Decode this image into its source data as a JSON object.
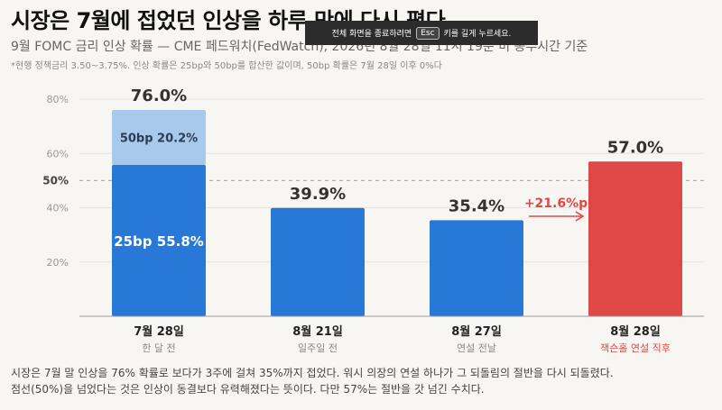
{
  "title": "시장은 7월에 접었던 인상을 하루 만에 다시 폈다",
  "subtitle": "9월 FOMC 금리 인상 확률 — CME 페드워치(FedWatch), 2026년 8월 28일 11시 19분 미 동부시간 기준",
  "note": "*현행 정책금리 3.50~3.75%. 인상 확률은 25bp와 50bp를 합산한 값이며, 50bp 확률은 7월 28일 이후 0%다",
  "toast": {
    "before": "전체 화면을 종료하려면",
    "key": "Esc",
    "after": "키를 길게 누르세요."
  },
  "colors": {
    "blue": "#2878d8",
    "light_blue": "#a8c8ec",
    "red": "#e04848",
    "arrow": "#e04848"
  },
  "chart_data": {
    "type": "bar",
    "categories": [
      "7월 28일",
      "8월 21일",
      "8월 27일",
      "8월 28일"
    ],
    "sublabels": [
      "한 달 전",
      "일주일 전",
      "연설 전날",
      "잭슨홀 연설 직후"
    ],
    "values": [
      76.0,
      39.9,
      35.4,
      57.0
    ],
    "value_labels": [
      "76.0%",
      "39.9%",
      "35.4%",
      "57.0%"
    ],
    "stack_first_bar": [
      {
        "name": "25bp",
        "value": 55.8,
        "label": "25bp 55.8%"
      },
      {
        "name": "50bp",
        "value": 20.2,
        "label": "50bp 20.2%"
      }
    ],
    "highlight_index": 3,
    "yticks": [
      20,
      40,
      50,
      60,
      80
    ],
    "ytick_labels": [
      "20%",
      "40%",
      "50%",
      "60%",
      "80%"
    ],
    "ylim": [
      0,
      80
    ],
    "reference_line": {
      "value": 50,
      "style": "dashed"
    },
    "annotation": {
      "text": "+21.6%p",
      "from_index": 2,
      "to_index": 3
    }
  },
  "caption": [
    "시장은 7월 말 인상을 76% 확률로 보다가 3주에 걸쳐 35%까지 접었다. 워시 의장의 연설 하나가 그 되돌림의 절반을 다시 되돌렸다.",
    "점선(50%)을 넘었다는 것은 인상이 동결보다 유력해졌다는 뜻이다. 다만 57%는 절반을 갓 넘긴 수치다."
  ]
}
